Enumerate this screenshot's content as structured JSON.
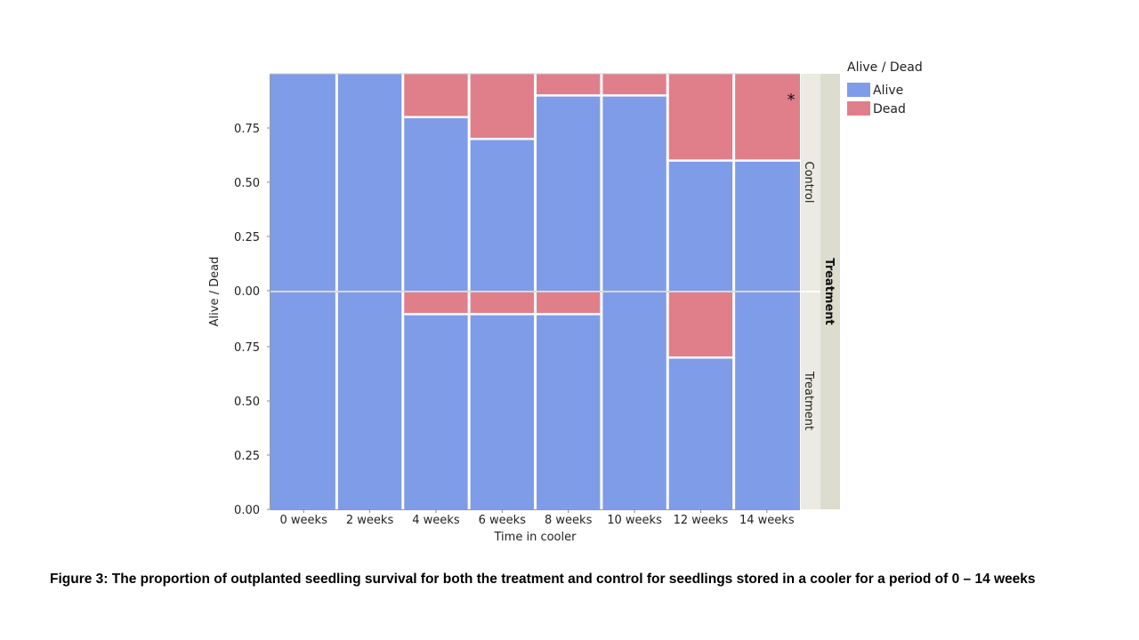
{
  "chart_data": {
    "type": "bar",
    "subtype": "stacked-proportion-faceted",
    "xlabel": "Time in cooler",
    "ylabel": "Alive / Dead",
    "categories": [
      "0 weeks",
      "2 weeks",
      "4 weeks",
      "6 weeks",
      "8 weeks",
      "10 weeks",
      "12 weeks",
      "14 weeks"
    ],
    "y_ticks": [
      "0.00",
      "0.25",
      "0.50",
      "0.75"
    ],
    "ylim": [
      0,
      1
    ],
    "facet_title": "Treatment",
    "facets": [
      {
        "name": "Control",
        "series": [
          {
            "name": "Alive",
            "values": [
              1.0,
              1.0,
              0.8,
              0.7,
              0.9,
              0.9,
              0.6,
              0.6
            ]
          },
          {
            "name": "Dead",
            "values": [
              0.0,
              0.0,
              0.2,
              0.3,
              0.1,
              0.1,
              0.4,
              0.4
            ]
          }
        ],
        "annotations": [
          {
            "category": "14 weeks",
            "text": "*"
          }
        ]
      },
      {
        "name": "Treatment",
        "series": [
          {
            "name": "Alive",
            "values": [
              1.0,
              1.0,
              0.9,
              0.9,
              0.9,
              1.0,
              0.7,
              1.0
            ]
          },
          {
            "name": "Dead",
            "values": [
              0.0,
              0.0,
              0.1,
              0.1,
              0.1,
              0.0,
              0.3,
              0.0
            ]
          }
        ],
        "annotations": []
      }
    ],
    "legend": {
      "title": "Alive / Dead",
      "position": "right",
      "entries": [
        {
          "label": "Alive",
          "color": "#7f9ce8"
        },
        {
          "label": "Dead",
          "color": "#e07f8a"
        }
      ]
    },
    "grid": false
  },
  "caption": "Figure 3: The proportion of outplanted seedling survival for both the treatment and control for seedlings stored in a cooler for a period of 0 – 14 weeks"
}
